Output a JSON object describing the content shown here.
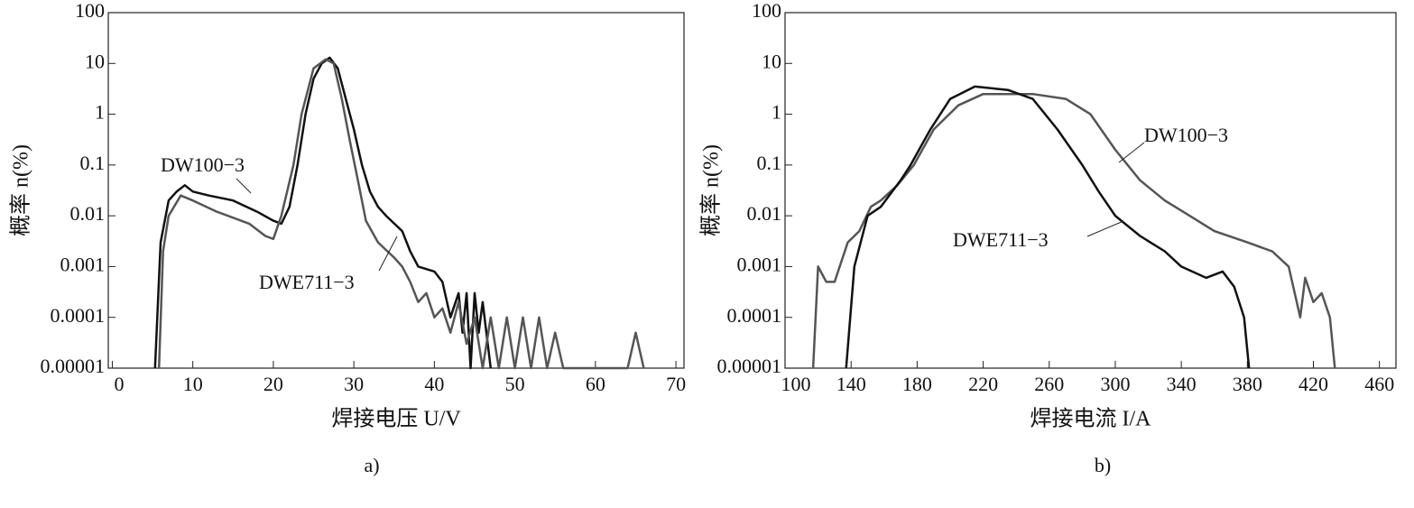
{
  "chart_data": [
    {
      "type": "line",
      "caption": "a)",
      "xlabel": "焊接电压 U/V",
      "ylabel": "概率 n(%)",
      "log_y": true,
      "xlim": [
        -0.5,
        71
      ],
      "ylim": [
        1e-05,
        100
      ],
      "xticks": [
        0,
        10,
        20,
        30,
        40,
        50,
        60,
        70
      ],
      "yticks": [
        100,
        10,
        1,
        0.1,
        0.01,
        0.001,
        0.0001,
        1e-05
      ],
      "series": [
        {
          "name": "DW100−3",
          "color": "#111111",
          "x": [
            5.3,
            6,
            7,
            8,
            9,
            10,
            12,
            15,
            18,
            20,
            21,
            22,
            23,
            24,
            25,
            26,
            27,
            28,
            29,
            30,
            31,
            32,
            33,
            34,
            36,
            37,
            38,
            40,
            41,
            42,
            43,
            43.5,
            44,
            44.5,
            45,
            45.5,
            46,
            47
          ],
          "values": [
            1e-05,
            0.003,
            0.02,
            0.03,
            0.04,
            0.03,
            0.025,
            0.02,
            0.012,
            0.008,
            0.007,
            0.015,
            0.1,
            1,
            5,
            10,
            13,
            8,
            2,
            0.5,
            0.1,
            0.03,
            0.015,
            0.01,
            0.005,
            0.002,
            0.001,
            0.0008,
            0.0005,
            0.0001,
            0.0003,
            5e-05,
            0.0003,
            1e-05,
            0.0003,
            5e-05,
            0.0002,
            1e-05
          ]
        },
        {
          "name": "DWE711−3",
          "color": "#555555",
          "x": [
            5.8,
            6.3,
            7,
            8.5,
            10,
            13,
            17,
            19,
            20,
            21,
            22.5,
            23.5,
            25,
            26.5,
            27.5,
            28.5,
            29.5,
            30.5,
            31.5,
            33,
            35,
            36,
            37,
            38,
            39,
            40,
            41,
            42,
            43,
            44,
            45,
            46,
            47,
            48,
            49,
            50,
            51,
            52,
            53,
            54,
            55,
            56,
            64,
            65,
            66
          ],
          "values": [
            1e-05,
            0.002,
            0.01,
            0.025,
            0.02,
            0.012,
            0.007,
            0.004,
            0.0035,
            0.01,
            0.1,
            1,
            8,
            12,
            10,
            2,
            0.3,
            0.05,
            0.008,
            0.003,
            0.0015,
            0.001,
            0.0005,
            0.0002,
            0.0003,
            0.0001,
            0.00015,
            5e-05,
            0.0002,
            3e-05,
            0.0001,
            1e-05,
            0.0001,
            1e-05,
            0.0001,
            1e-05,
            0.0001,
            1e-05,
            0.0001,
            1e-05,
            5e-05,
            1e-05,
            1e-05,
            5e-05,
            1e-05
          ]
        }
      ]
    },
    {
      "type": "line",
      "caption": "b)",
      "xlabel": "焊接电流 I/A",
      "ylabel": "概率 n(%)",
      "log_y": true,
      "xlim": [
        100,
        470
      ],
      "ylim": [
        1e-05,
        100
      ],
      "xticks": [
        100,
        140,
        180,
        220,
        260,
        300,
        340,
        380,
        420,
        460
      ],
      "yticks": [
        100,
        10,
        1,
        0.1,
        0.01,
        0.001,
        0.0001,
        1e-05
      ],
      "series": [
        {
          "name": "DW100−3",
          "color": "#555555",
          "x": [
            117,
            120,
            125,
            130,
            138,
            145,
            152,
            158,
            168,
            178,
            190,
            205,
            220,
            250,
            270,
            285,
            300,
            315,
            330,
            345,
            360,
            380,
            395,
            405,
            412,
            415,
            420,
            425,
            430,
            433
          ],
          "values": [
            1e-05,
            0.001,
            0.0005,
            0.0005,
            0.003,
            0.005,
            0.015,
            0.02,
            0.04,
            0.1,
            0.5,
            1.5,
            2.5,
            2.5,
            2,
            1,
            0.2,
            0.05,
            0.02,
            0.01,
            0.005,
            0.003,
            0.002,
            0.001,
            0.0001,
            0.0006,
            0.0002,
            0.0003,
            0.0001,
            1e-05
          ]
        },
        {
          "name": "DWE711−3",
          "color": "#111111",
          "x": [
            137,
            142,
            150,
            158,
            170,
            176,
            188,
            200,
            215,
            235,
            250,
            265,
            280,
            290,
            300,
            315,
            330,
            340,
            355,
            365,
            372,
            378,
            381
          ],
          "values": [
            1e-05,
            0.001,
            0.01,
            0.015,
            0.05,
            0.1,
            0.5,
            2,
            3.5,
            3,
            2,
            0.5,
            0.1,
            0.03,
            0.01,
            0.004,
            0.002,
            0.001,
            0.0006,
            0.0008,
            0.0004,
            0.0001,
            1e-05
          ]
        }
      ]
    }
  ]
}
